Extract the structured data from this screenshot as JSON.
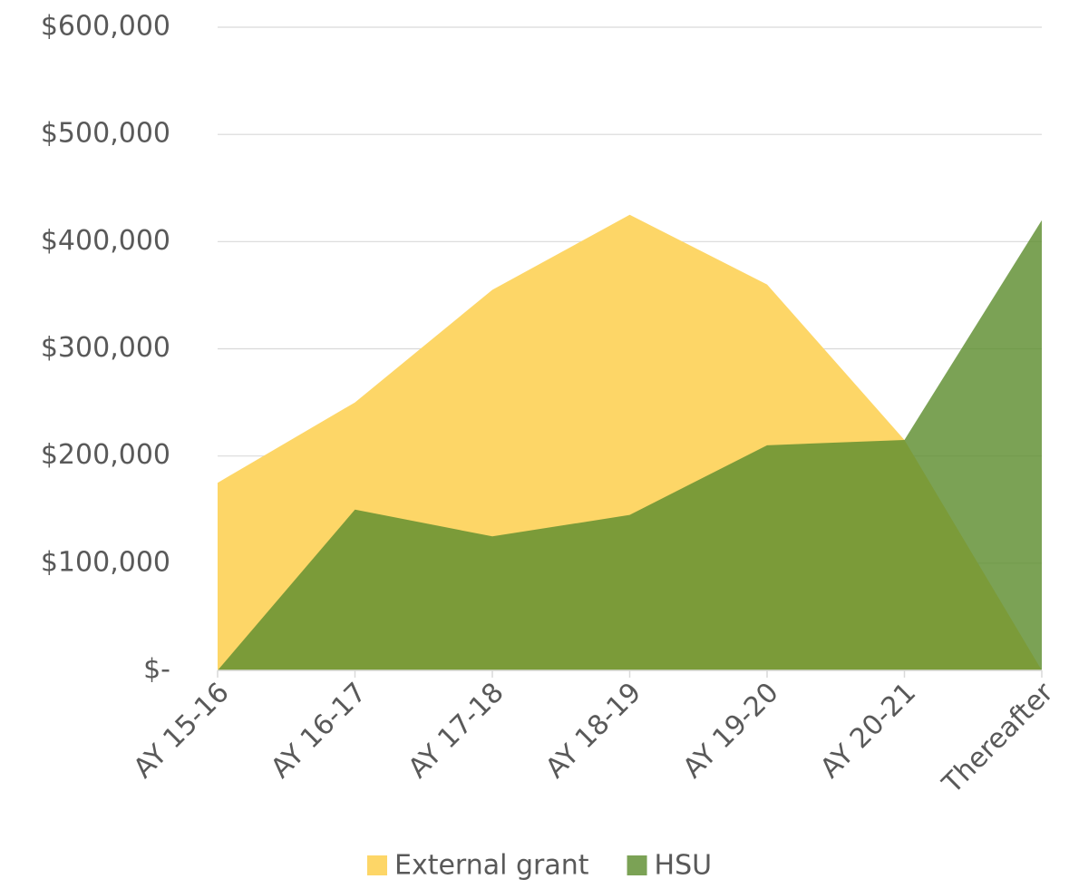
{
  "chart_data": {
    "type": "area",
    "categories": [
      "AY 15-16",
      "AY 16-17",
      "AY 17-18",
      "AY 18-19",
      "AY 19-20",
      "AY 20-21",
      "Thereafter"
    ],
    "series": [
      {
        "name": "External grant",
        "color": "#fdd667",
        "values": [
          175000,
          250000,
          355000,
          425000,
          360000,
          215000,
          0
        ]
      },
      {
        "name": "HSU",
        "color": "#5e8e30",
        "values": [
          0,
          150000,
          125000,
          145000,
          210000,
          215000,
          420000
        ]
      }
    ],
    "ylim": [
      0,
      600000
    ],
    "yticks": [
      {
        "value": 0,
        "label": "$-"
      },
      {
        "value": 100000,
        "label": "$100,000"
      },
      {
        "value": 200000,
        "label": "$200,000"
      },
      {
        "value": 300000,
        "label": "$300,000"
      },
      {
        "value": 400000,
        "label": "$400,000"
      },
      {
        "value": 500000,
        "label": "$500,000"
      },
      {
        "value": 600000,
        "label": "$600,000"
      }
    ],
    "grid": true,
    "legend": "bottom"
  }
}
